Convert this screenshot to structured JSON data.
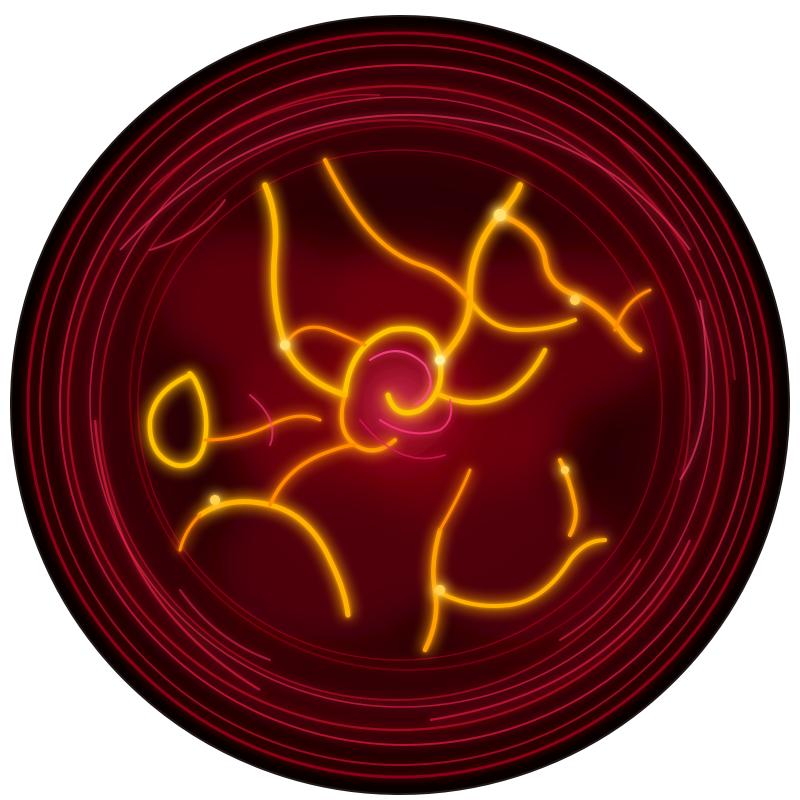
{
  "image": {
    "subject": "glowing-fractal-orb",
    "colors": {
      "page_background": "#ffffff",
      "sphere_base": "#0a0000",
      "deep_red": "#8a0010",
      "crimson": "#e0102a",
      "magenta": "#ff3a7a",
      "orange": "#ff8a00",
      "yellow": "#ffd400",
      "hot_white": "#fff6b0"
    }
  }
}
